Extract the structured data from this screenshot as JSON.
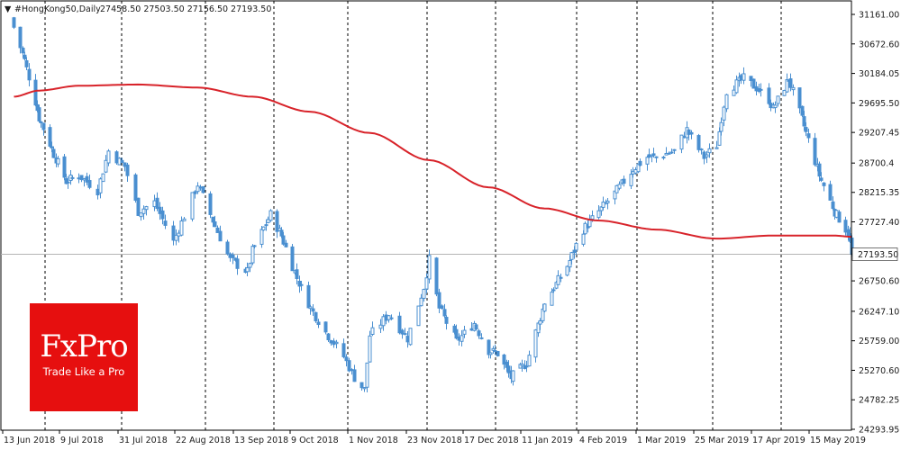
{
  "header": {
    "arrow_glyph": "▼",
    "symbol": "#HongKong50,Daily",
    "ohlc": "27458.50 27503.50 27156.50 27193.50"
  },
  "logo": {
    "name": "FxPro",
    "tagline": "Trade Like a Pro"
  },
  "colors": {
    "candle": "#4a8fd0",
    "ma": "#d8232a",
    "price_line": "#b4b4b4",
    "grid": "#000000",
    "logo_bg": "#e60f0f"
  },
  "chart_data": {
    "type": "candlestick",
    "title": "#HongKong50,Daily",
    "ohlc_last": {
      "open": 27458.5,
      "high": 27503.5,
      "low": 27156.5,
      "close": 27193.5
    },
    "current_price_label": "27193.50",
    "ylim": [
      24293.95,
      31161.0
    ],
    "y_ticks": [
      "31161.00",
      "30672.60",
      "30184.05",
      "29695.50",
      "29207.45",
      "28700.4",
      "28215.35",
      "27727.40",
      "27193.50",
      "26750.60",
      "26247.10",
      "25759.00",
      "25270.60",
      "24782.25",
      "24293.95"
    ],
    "y_tick_values": [
      31161.0,
      30672.6,
      30184.05,
      29695.5,
      29207.45,
      28700.4,
      28215.35,
      27727.4,
      27193.5,
      26750.6,
      26247.1,
      25759.0,
      25270.6,
      24782.25,
      24293.95
    ],
    "x_ticks": [
      "13 Jun 2018",
      "9 Jul 2018",
      "31 Jul 2018",
      "22 Aug 2018",
      "13 Sep 2018",
      "9 Oct 2018",
      "1 Nov 2018",
      "23 Nov 2018",
      "17 Dec 2018",
      "11 Jan 2019",
      "4 Feb 2019",
      "1 Mar 2019",
      "25 Mar 2019",
      "17 Apr 2019",
      "15 May 2019"
    ],
    "x_dates": [
      "2018-06-13",
      "2018-07-09",
      "2018-07-31",
      "2018-08-22",
      "2018-09-13",
      "2018-10-09",
      "2018-11-01",
      "2018-11-23",
      "2018-12-17",
      "2019-01-11",
      "2019-02-04",
      "2019-03-01",
      "2019-03-25",
      "2019-04-17",
      "2019-05-15"
    ],
    "grid": "vertical dashed at date ticks",
    "close_anchors": [
      [
        "2018-06-08",
        30950
      ],
      [
        "2018-06-13",
        30400
      ],
      [
        "2018-06-20",
        29450
      ],
      [
        "2018-06-27",
        28850
      ],
      [
        "2018-07-03",
        28400
      ],
      [
        "2018-07-09",
        28500
      ],
      [
        "2018-07-16",
        28250
      ],
      [
        "2018-07-20",
        28900
      ],
      [
        "2018-07-26",
        28650
      ],
      [
        "2018-07-31",
        27900
      ],
      [
        "2018-08-06",
        28050
      ],
      [
        "2018-08-13",
        27400
      ],
      [
        "2018-08-22",
        28350
      ],
      [
        "2018-08-28",
        27750
      ],
      [
        "2018-09-04",
        27100
      ],
      [
        "2018-09-11",
        26900
      ],
      [
        "2018-09-13",
        27250
      ],
      [
        "2018-09-21",
        27850
      ],
      [
        "2018-09-26",
        27500
      ],
      [
        "2018-10-03",
        26800
      ],
      [
        "2018-10-09",
        26300
      ],
      [
        "2018-10-15",
        25900
      ],
      [
        "2018-10-22",
        25500
      ],
      [
        "2018-10-26",
        25150
      ],
      [
        "2018-10-30",
        24950
      ],
      [
        "2018-11-01",
        25850
      ],
      [
        "2018-11-08",
        26200
      ],
      [
        "2018-11-15",
        25800
      ],
      [
        "2018-11-21",
        26650
      ],
      [
        "2018-11-23",
        27100
      ],
      [
        "2018-11-27",
        26300
      ],
      [
        "2018-12-04",
        25750
      ],
      [
        "2018-12-11",
        26050
      ],
      [
        "2018-12-17",
        25600
      ],
      [
        "2018-12-21",
        25550
      ],
      [
        "2018-12-27",
        25150
      ],
      [
        "2019-01-03",
        25400
      ],
      [
        "2019-01-11",
        26400
      ],
      [
        "2019-01-21",
        27000
      ],
      [
        "2019-01-28",
        27600
      ],
      [
        "2019-02-04",
        27900
      ],
      [
        "2019-02-11",
        28200
      ],
      [
        "2019-02-19",
        28600
      ],
      [
        "2019-02-25",
        28800
      ],
      [
        "2019-03-01",
        28800
      ],
      [
        "2019-03-08",
        28900
      ],
      [
        "2019-03-13",
        29250
      ],
      [
        "2019-03-20",
        28800
      ],
      [
        "2019-03-25",
        29000
      ],
      [
        "2019-03-29",
        29900
      ],
      [
        "2019-04-05",
        30100
      ],
      [
        "2019-04-10",
        29950
      ],
      [
        "2019-04-15",
        29750
      ],
      [
        "2019-04-17",
        29600
      ],
      [
        "2019-04-24",
        30100
      ],
      [
        "2019-05-02",
        29200
      ],
      [
        "2019-05-08",
        28500
      ],
      [
        "2019-05-15",
        27900
      ],
      [
        "2019-05-21",
        27550
      ],
      [
        "2019-05-23",
        27193.5
      ]
    ],
    "moving_average": {
      "anchors": [
        [
          "2018-06-08",
          29800
        ],
        [
          "2018-06-20",
          29900
        ],
        [
          "2018-07-09",
          29980
        ],
        [
          "2018-07-31",
          30000
        ],
        [
          "2018-08-22",
          29950
        ],
        [
          "2018-09-13",
          29800
        ],
        [
          "2018-10-09",
          29550
        ],
        [
          "2018-11-01",
          29200
        ],
        [
          "2018-11-23",
          28750
        ],
        [
          "2018-12-17",
          28300
        ],
        [
          "2019-01-11",
          27950
        ],
        [
          "2019-02-04",
          27750
        ],
        [
          "2019-03-01",
          27600
        ],
        [
          "2019-03-25",
          27450
        ],
        [
          "2019-04-17",
          27500
        ],
        [
          "2019-05-15",
          27500
        ],
        [
          "2019-05-23",
          27480
        ]
      ]
    }
  }
}
